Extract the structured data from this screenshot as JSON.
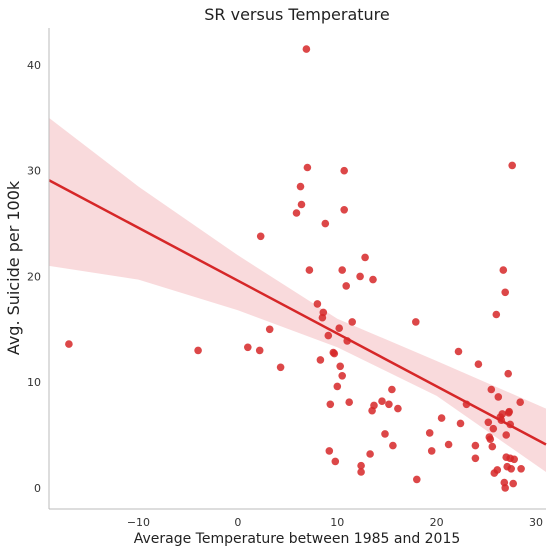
{
  "chart_data": {
    "type": "scatter",
    "title": "SR versus Temperature",
    "xlabel": "Average Temperature between 1985 and 2015",
    "ylabel": "Avg. Suicide per 100k",
    "xlim": [
      -19,
      31
    ],
    "ylim": [
      -2,
      43.5
    ],
    "xticks": [
      -10,
      0,
      10,
      20,
      30
    ],
    "yticks": [
      0,
      10,
      20,
      30,
      40
    ],
    "xtick_labels": [
      "−10",
      "0",
      "10",
      "20",
      "30"
    ],
    "ytick_labels": [
      "0",
      "10",
      "20",
      "30",
      "40"
    ],
    "grid": false,
    "point_color": "#d62728",
    "band_color": "#f4b6b9",
    "regression": {
      "intercept": 19.6,
      "slope": -0.5,
      "ci": {
        "x": [
          -19,
          -10,
          0,
          10,
          20,
          31
        ],
        "lower": [
          21.0,
          19.7,
          16.8,
          13.3,
          8.7,
          1.5
        ],
        "upper": [
          35.0,
          28.5,
          22.0,
          16.0,
          12.0,
          7.5
        ]
      }
    },
    "points": [
      {
        "x": -17.0,
        "y": 13.6
      },
      {
        "x": -4.0,
        "y": 13.0
      },
      {
        "x": 1.0,
        "y": 13.3
      },
      {
        "x": 2.2,
        "y": 13.0
      },
      {
        "x": 2.3,
        "y": 23.8
      },
      {
        "x": 3.2,
        "y": 15.0
      },
      {
        "x": 4.3,
        "y": 11.4
      },
      {
        "x": 5.9,
        "y": 26.0
      },
      {
        "x": 6.3,
        "y": 28.5
      },
      {
        "x": 6.4,
        "y": 26.8
      },
      {
        "x": 6.9,
        "y": 41.5
      },
      {
        "x": 7.0,
        "y": 30.3
      },
      {
        "x": 7.2,
        "y": 20.6
      },
      {
        "x": 8.0,
        "y": 17.4
      },
      {
        "x": 8.3,
        "y": 12.1
      },
      {
        "x": 8.5,
        "y": 16.1
      },
      {
        "x": 8.6,
        "y": 16.6
      },
      {
        "x": 8.8,
        "y": 25.0
      },
      {
        "x": 9.1,
        "y": 14.4
      },
      {
        "x": 9.2,
        "y": 3.5
      },
      {
        "x": 9.3,
        "y": 7.9
      },
      {
        "x": 9.6,
        "y": 12.8
      },
      {
        "x": 9.7,
        "y": 12.7
      },
      {
        "x": 9.8,
        "y": 2.5
      },
      {
        "x": 10.0,
        "y": 9.6
      },
      {
        "x": 10.2,
        "y": 15.1
      },
      {
        "x": 10.3,
        "y": 11.5
      },
      {
        "x": 10.5,
        "y": 20.6
      },
      {
        "x": 10.5,
        "y": 10.6
      },
      {
        "x": 10.7,
        "y": 26.3
      },
      {
        "x": 10.7,
        "y": 30.0
      },
      {
        "x": 10.9,
        "y": 19.1
      },
      {
        "x": 11.0,
        "y": 13.9
      },
      {
        "x": 11.2,
        "y": 8.1
      },
      {
        "x": 11.5,
        "y": 15.7
      },
      {
        "x": 12.3,
        "y": 20.0
      },
      {
        "x": 12.4,
        "y": 2.1
      },
      {
        "x": 12.4,
        "y": 1.5
      },
      {
        "x": 12.8,
        "y": 21.8
      },
      {
        "x": 13.3,
        "y": 3.2
      },
      {
        "x": 13.5,
        "y": 7.3
      },
      {
        "x": 13.6,
        "y": 19.7
      },
      {
        "x": 13.7,
        "y": 7.8
      },
      {
        "x": 14.5,
        "y": 8.2
      },
      {
        "x": 14.8,
        "y": 5.1
      },
      {
        "x": 15.2,
        "y": 7.9
      },
      {
        "x": 15.5,
        "y": 9.3
      },
      {
        "x": 15.6,
        "y": 4.0
      },
      {
        "x": 16.1,
        "y": 7.5
      },
      {
        "x": 17.9,
        "y": 15.7
      },
      {
        "x": 18.0,
        "y": 0.8
      },
      {
        "x": 19.3,
        "y": 5.2
      },
      {
        "x": 19.5,
        "y": 3.5
      },
      {
        "x": 20.5,
        "y": 6.6
      },
      {
        "x": 21.2,
        "y": 4.1
      },
      {
        "x": 22.2,
        "y": 12.9
      },
      {
        "x": 22.4,
        "y": 6.1
      },
      {
        "x": 23.0,
        "y": 7.9
      },
      {
        "x": 23.9,
        "y": 4.0
      },
      {
        "x": 23.9,
        "y": 2.8
      },
      {
        "x": 24.2,
        "y": 11.7
      },
      {
        "x": 25.2,
        "y": 6.2
      },
      {
        "x": 25.3,
        "y": 4.8
      },
      {
        "x": 25.4,
        "y": 4.6
      },
      {
        "x": 25.5,
        "y": 9.3
      },
      {
        "x": 25.6,
        "y": 3.9
      },
      {
        "x": 25.7,
        "y": 5.6
      },
      {
        "x": 25.8,
        "y": 1.4
      },
      {
        "x": 26.0,
        "y": 16.4
      },
      {
        "x": 26.1,
        "y": 1.7
      },
      {
        "x": 26.2,
        "y": 8.6
      },
      {
        "x": 26.4,
        "y": 6.7
      },
      {
        "x": 26.5,
        "y": 6.4
      },
      {
        "x": 26.6,
        "y": 7.0
      },
      {
        "x": 26.7,
        "y": 20.6
      },
      {
        "x": 26.8,
        "y": 0.5
      },
      {
        "x": 26.9,
        "y": 0.0
      },
      {
        "x": 26.9,
        "y": 18.5
      },
      {
        "x": 27.0,
        "y": 5.0
      },
      {
        "x": 27.0,
        "y": 2.9
      },
      {
        "x": 27.1,
        "y": 2.0
      },
      {
        "x": 27.2,
        "y": 10.8
      },
      {
        "x": 27.3,
        "y": 7.2
      },
      {
        "x": 27.4,
        "y": 6.0
      },
      {
        "x": 27.4,
        "y": 2.8
      },
      {
        "x": 27.5,
        "y": 1.8
      },
      {
        "x": 27.6,
        "y": 30.5
      },
      {
        "x": 27.7,
        "y": 0.4
      },
      {
        "x": 27.8,
        "y": 2.7
      },
      {
        "x": 28.4,
        "y": 8.1
      },
      {
        "x": 28.5,
        "y": 1.8
      },
      {
        "x": 27.25,
        "y": 7.1
      }
    ]
  }
}
